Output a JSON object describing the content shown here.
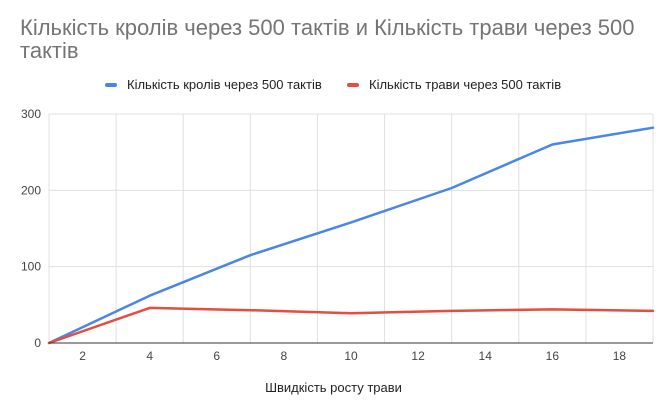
{
  "chart_data": {
    "type": "line",
    "title": "Кількість кролів через 500 тактів и Кількість трави через 500 тактів",
    "xlabel": "Швидкість росту трави",
    "ylabel": "",
    "xlim": [
      1,
      19
    ],
    "ylim": [
      0,
      300
    ],
    "x_ticks": [
      2,
      4,
      6,
      8,
      10,
      12,
      14,
      16,
      18
    ],
    "y_ticks": [
      0,
      100,
      200,
      300
    ],
    "x_gridlines": [
      1,
      3,
      5,
      7,
      9,
      11,
      13,
      15,
      17,
      19
    ],
    "grid": true,
    "legend_position": "top",
    "series": [
      {
        "name": "Кількість кролів через 500 тактів",
        "color": "#4a86e8",
        "points": [
          [
            1,
            0
          ],
          [
            4,
            62
          ],
          [
            7,
            115
          ],
          [
            10,
            158
          ],
          [
            13,
            203
          ],
          [
            16,
            260
          ],
          [
            19,
            282
          ]
        ]
      },
      {
        "name": "Кількість трави через 500 тактів",
        "color": "#e74c3c",
        "points": [
          [
            1,
            0
          ],
          [
            4,
            46
          ],
          [
            7,
            43
          ],
          [
            10,
            39
          ],
          [
            13,
            42
          ],
          [
            16,
            44
          ],
          [
            19,
            42
          ]
        ]
      }
    ]
  }
}
